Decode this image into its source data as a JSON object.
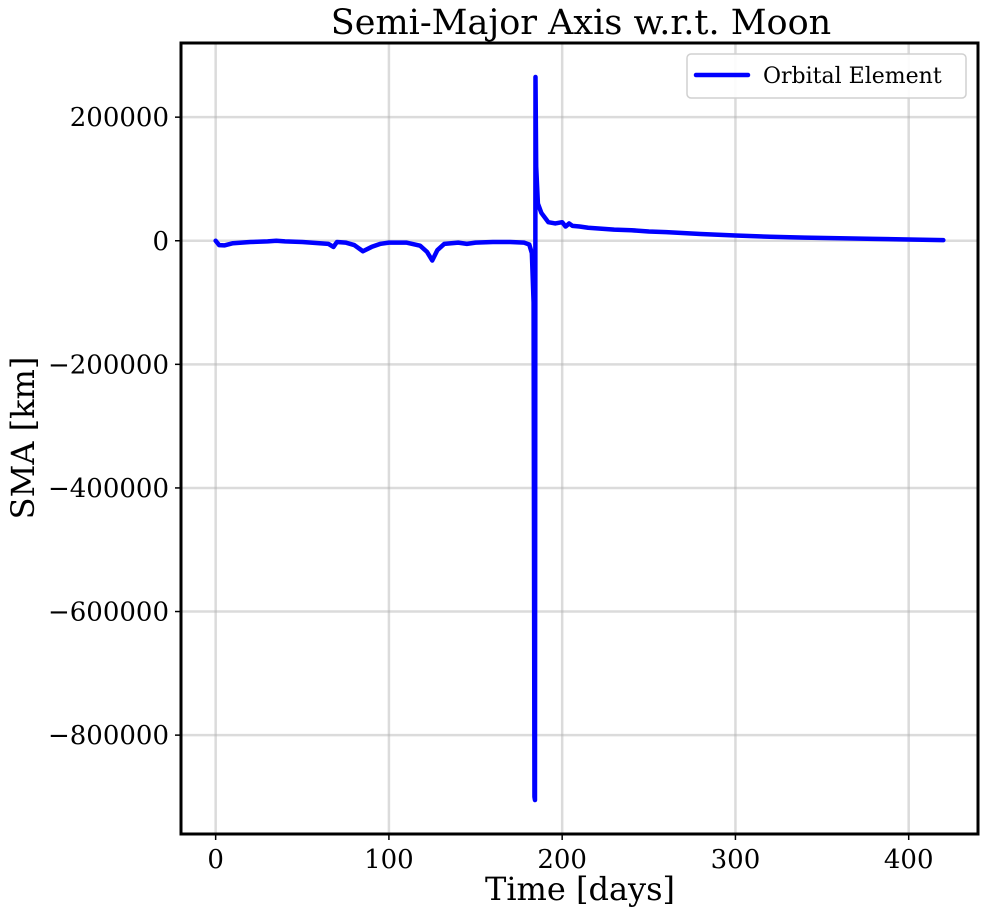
{
  "chart_data": {
    "type": "line",
    "title": "Semi-Major Axis w.r.t. Moon",
    "xlabel": "Time [days]",
    "ylabel": "SMA [km]",
    "xlim": [
      -20,
      440
    ],
    "ylim": [
      -960000,
      320000
    ],
    "xticks": [
      0,
      100,
      200,
      300,
      400
    ],
    "xtick_labels": [
      "0",
      "100",
      "200",
      "300",
      "400"
    ],
    "yticks": [
      200000,
      0,
      -200000,
      -400000,
      -600000,
      -800000
    ],
    "ytick_labels": [
      "200000",
      "0",
      "−200000",
      "−400000",
      "−600000",
      "−800000"
    ],
    "grid": true,
    "legend_position": "upper-right",
    "colors": {
      "series": "#0000ff",
      "grid": "#b0b0b0",
      "frame": "#000000"
    },
    "series": [
      {
        "name": "Orbital Element",
        "x": [
          0,
          2,
          5,
          10,
          20,
          30,
          35,
          40,
          50,
          60,
          65,
          68,
          70,
          75,
          80,
          85,
          90,
          95,
          100,
          110,
          118,
          122,
          125,
          128,
          132,
          140,
          145,
          150,
          160,
          170,
          178,
          181,
          182.5,
          183.5,
          184,
          184.3,
          184.6,
          185,
          186,
          188,
          192,
          196,
          200,
          202,
          204,
          206,
          210,
          215,
          220,
          230,
          240,
          250,
          260,
          280,
          300,
          320,
          340,
          360,
          380,
          400,
          420
        ],
        "y": [
          0,
          -7000,
          -7500,
          -4000,
          -2000,
          -1000,
          0,
          -1000,
          -2000,
          -4000,
          -5000,
          -10000,
          -2000,
          -3000,
          -7000,
          -17000,
          -10000,
          -5000,
          -3000,
          -3000,
          -8000,
          -18000,
          -32000,
          -15000,
          -5000,
          -3000,
          -5000,
          -3000,
          -2000,
          -2000,
          -3000,
          -6000,
          -20000,
          -100000,
          -900000,
          -905000,
          265000,
          120000,
          60000,
          45000,
          30000,
          28000,
          30000,
          23000,
          28000,
          24000,
          23000,
          21000,
          20000,
          18000,
          17000,
          15000,
          14000,
          11000,
          8500,
          6500,
          5000,
          4000,
          3000,
          2000,
          1000
        ]
      }
    ]
  }
}
